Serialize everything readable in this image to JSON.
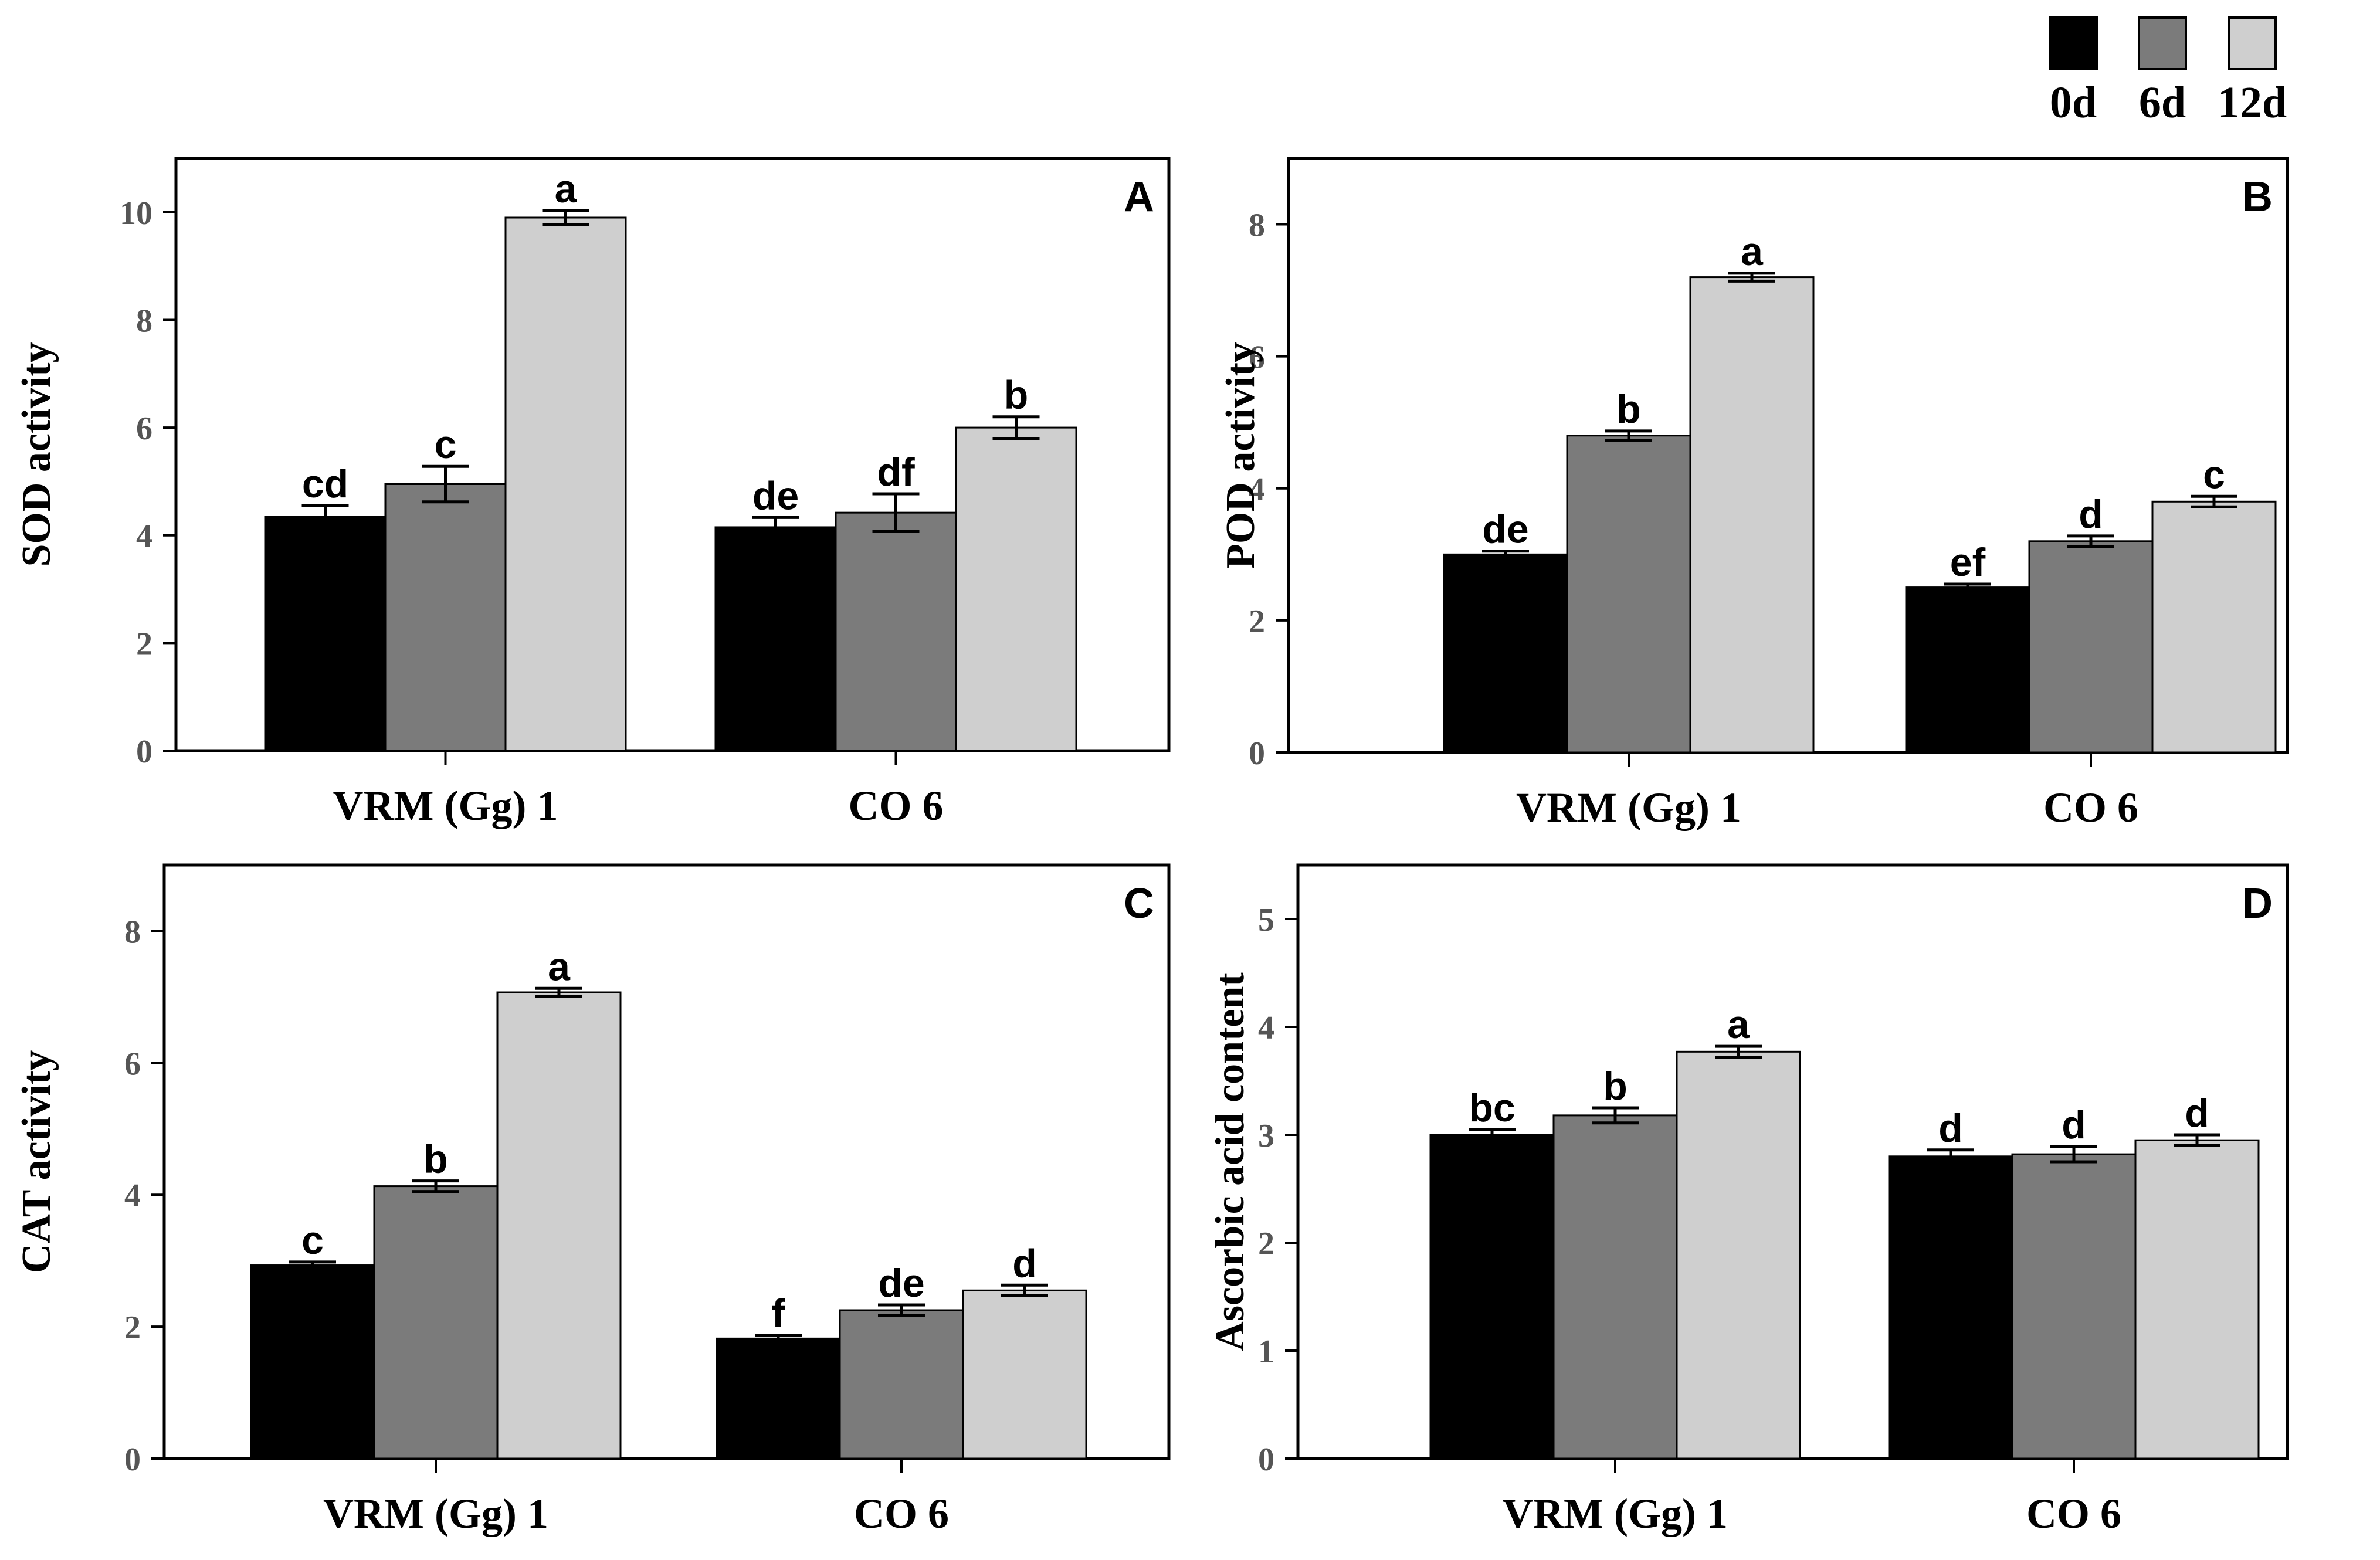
{
  "legend": {
    "position": "top-right",
    "items": [
      {
        "label": "0d",
        "color": "#000000"
      },
      {
        "label": "6d",
        "color": "#7b7b7b"
      },
      {
        "label": "12d",
        "color": "#cfcfcf"
      }
    ]
  },
  "chart_data": [
    {
      "type": "bar",
      "panel_label": "A",
      "ylabel": "SOD activity",
      "ylim": [
        0,
        11
      ],
      "yticks": [
        "0",
        "2",
        "4",
        "6",
        "8",
        "10"
      ],
      "categories": [
        "VRM (Gg) 1",
        "CO 6"
      ],
      "series": [
        {
          "name": "0d",
          "values": [
            4.35,
            4.15
          ],
          "errors": [
            0.2,
            0.18
          ],
          "letters": [
            "cd",
            "de"
          ]
        },
        {
          "name": "6d",
          "values": [
            4.95,
            4.42
          ],
          "errors": [
            0.33,
            0.35
          ],
          "letters": [
            "c",
            "df"
          ]
        },
        {
          "name": "12d",
          "values": [
            9.9,
            6.0
          ],
          "errors": [
            0.13,
            0.2
          ],
          "letters": [
            "a",
            "b"
          ]
        }
      ]
    },
    {
      "type": "bar",
      "panel_label": "B",
      "ylabel": "POD activity",
      "ylim": [
        0,
        9
      ],
      "yticks": [
        "0",
        "2",
        "4",
        "6",
        "8"
      ],
      "categories": [
        "VRM (Gg) 1",
        "CO 6"
      ],
      "series": [
        {
          "name": "0d",
          "values": [
            3.0,
            2.5
          ],
          "errors": [
            0.05,
            0.05
          ],
          "letters": [
            "de",
            "ef"
          ]
        },
        {
          "name": "6d",
          "values": [
            4.8,
            3.2
          ],
          "errors": [
            0.07,
            0.08
          ],
          "letters": [
            "b",
            "d"
          ]
        },
        {
          "name": "12d",
          "values": [
            7.2,
            3.8
          ],
          "errors": [
            0.06,
            0.08
          ],
          "letters": [
            "a",
            "c"
          ]
        }
      ]
    },
    {
      "type": "bar",
      "panel_label": "C",
      "ylabel": "CAT activity",
      "ylim": [
        0,
        9
      ],
      "yticks": [
        "0",
        "2",
        "4",
        "6",
        "8"
      ],
      "categories": [
        "VRM (Gg) 1",
        "CO 6"
      ],
      "series": [
        {
          "name": "0d",
          "values": [
            2.93,
            1.82
          ],
          "errors": [
            0.05,
            0.05
          ],
          "letters": [
            "c",
            "f"
          ]
        },
        {
          "name": "6d",
          "values": [
            4.13,
            2.25
          ],
          "errors": [
            0.08,
            0.08
          ],
          "letters": [
            "b",
            "de"
          ]
        },
        {
          "name": "12d",
          "values": [
            7.07,
            2.55
          ],
          "errors": [
            0.06,
            0.08
          ],
          "letters": [
            "a",
            "d"
          ]
        }
      ]
    },
    {
      "type": "bar",
      "panel_label": "D",
      "ylabel": "Ascorbic acid content",
      "ylim": [
        0,
        5.5
      ],
      "yticks": [
        "0",
        "1",
        "2",
        "3",
        "4",
        "5"
      ],
      "categories": [
        "VRM (Gg) 1",
        "CO 6"
      ],
      "series": [
        {
          "name": "0d",
          "values": [
            3.0,
            2.8
          ],
          "errors": [
            0.05,
            0.06
          ],
          "letters": [
            "bc",
            "d"
          ]
        },
        {
          "name": "6d",
          "values": [
            3.18,
            2.82
          ],
          "errors": [
            0.07,
            0.07
          ],
          "letters": [
            "b",
            "d"
          ]
        },
        {
          "name": "12d",
          "values": [
            3.77,
            2.95
          ],
          "errors": [
            0.05,
            0.05
          ],
          "letters": [
            "a",
            "d"
          ]
        }
      ]
    }
  ]
}
